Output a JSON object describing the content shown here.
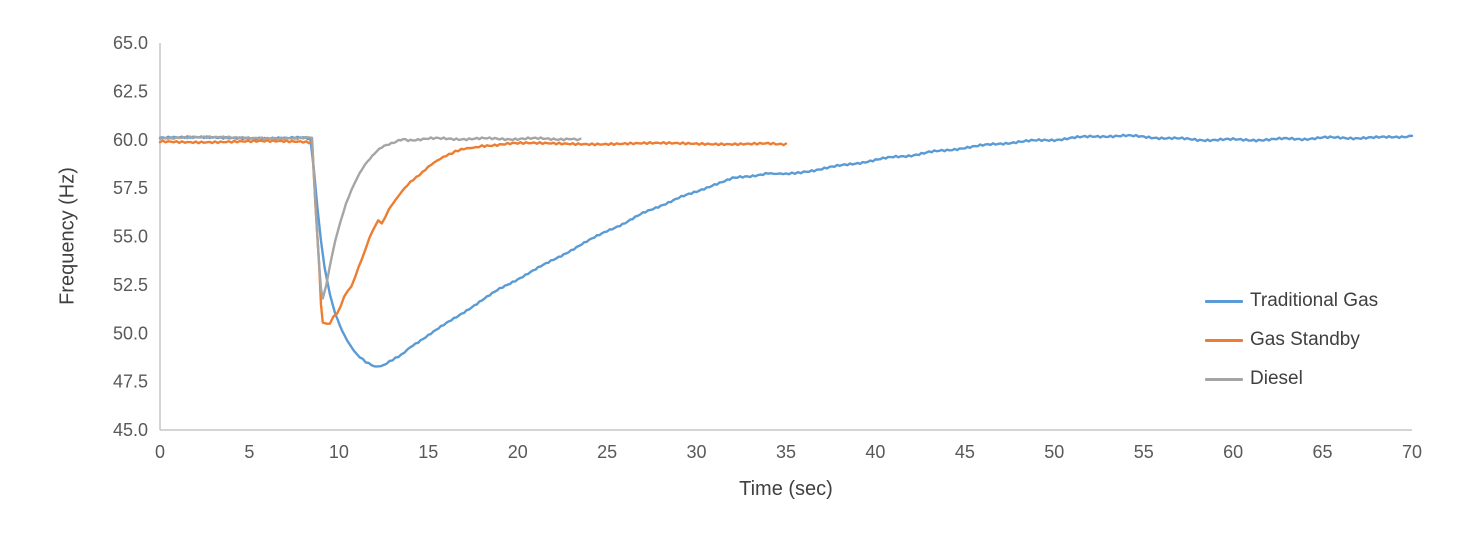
{
  "chart_data": {
    "type": "line",
    "title": "",
    "xlabel": "Time (sec)",
    "ylabel": "Frequency (Hz)",
    "xlim": [
      0,
      70
    ],
    "ylim": [
      45.0,
      65.0
    ],
    "x_ticks": [
      0,
      5,
      10,
      15,
      20,
      25,
      30,
      35,
      40,
      45,
      50,
      55,
      60,
      65,
      70
    ],
    "y_ticks": [
      45.0,
      47.5,
      50.0,
      52.5,
      55.0,
      57.5,
      60.0,
      62.5,
      65.0
    ],
    "grid": false,
    "legend_position": "right-inside",
    "axis_color": "#C6C6C6",
    "tick_color": "#595959",
    "series": [
      {
        "name": "Traditional Gas",
        "color": "#5B9BD5",
        "points": [
          [
            0,
            60.1
          ],
          [
            2,
            60.1
          ],
          [
            4,
            60.1
          ],
          [
            6,
            60.1
          ],
          [
            8,
            60.1
          ],
          [
            8.4,
            60.1
          ],
          [
            8.6,
            58.5
          ],
          [
            8.8,
            56.5
          ],
          [
            9.0,
            54.8
          ],
          [
            9.2,
            53.4
          ],
          [
            9.5,
            52.0
          ],
          [
            9.8,
            51.0
          ],
          [
            10.2,
            50.1
          ],
          [
            10.6,
            49.4
          ],
          [
            11.0,
            48.9
          ],
          [
            11.5,
            48.5
          ],
          [
            12.0,
            48.3
          ],
          [
            12.5,
            48.35
          ],
          [
            13.0,
            48.6
          ],
          [
            13.5,
            48.9
          ],
          [
            14.0,
            49.3
          ],
          [
            15,
            49.9
          ],
          [
            16,
            50.5
          ],
          [
            17,
            51.1
          ],
          [
            18,
            51.7
          ],
          [
            19,
            52.3
          ],
          [
            20,
            52.8
          ],
          [
            21,
            53.3
          ],
          [
            22,
            53.8
          ],
          [
            23,
            54.3
          ],
          [
            24,
            54.8
          ],
          [
            25,
            55.3
          ],
          [
            26,
            55.7
          ],
          [
            27,
            56.2
          ],
          [
            28,
            56.6
          ],
          [
            29,
            57.0
          ],
          [
            30,
            57.3
          ],
          [
            31,
            57.7
          ],
          [
            32,
            58.0
          ],
          [
            33,
            58.1
          ],
          [
            34,
            58.3
          ],
          [
            34.5,
            58.25
          ],
          [
            35,
            58.2
          ],
          [
            35.5,
            58.3
          ],
          [
            36,
            58.35
          ],
          [
            37,
            58.5
          ],
          [
            38,
            58.65
          ],
          [
            39,
            58.8
          ],
          [
            40,
            58.95
          ],
          [
            41,
            59.1
          ],
          [
            42,
            59.2
          ],
          [
            43,
            59.35
          ],
          [
            44,
            59.45
          ],
          [
            45,
            59.6
          ],
          [
            46,
            59.7
          ],
          [
            47,
            59.8
          ],
          [
            48,
            59.9
          ],
          [
            49,
            59.95
          ],
          [
            50,
            60.0
          ],
          [
            51,
            60.1
          ],
          [
            52,
            60.15
          ],
          [
            53,
            60.2
          ],
          [
            54,
            60.2
          ],
          [
            55,
            60.15
          ],
          [
            56,
            60.1
          ],
          [
            57,
            60.05
          ],
          [
            58,
            60.0
          ],
          [
            59,
            60.0
          ],
          [
            60,
            60.0
          ],
          [
            61,
            60.0
          ],
          [
            62,
            60.0
          ],
          [
            63,
            60.05
          ],
          [
            64,
            60.05
          ],
          [
            65,
            60.1
          ],
          [
            66,
            60.1
          ],
          [
            67,
            60.1
          ],
          [
            68,
            60.1
          ],
          [
            69,
            60.15
          ],
          [
            70,
            60.2
          ]
        ]
      },
      {
        "name": "Gas Standby",
        "color": "#ED7D31",
        "points": [
          [
            0,
            59.9
          ],
          [
            2,
            59.9
          ],
          [
            4,
            59.9
          ],
          [
            6,
            59.9
          ],
          [
            8,
            59.9
          ],
          [
            8.5,
            59.9
          ],
          [
            8.7,
            56.5
          ],
          [
            8.9,
            53.5
          ],
          [
            9.0,
            51.5
          ],
          [
            9.1,
            50.6
          ],
          [
            9.3,
            50.45
          ],
          [
            9.5,
            50.5
          ],
          [
            9.7,
            50.9
          ],
          [
            9.9,
            51.0
          ],
          [
            10.1,
            51.4
          ],
          [
            10.3,
            51.9
          ],
          [
            10.5,
            52.2
          ],
          [
            10.7,
            52.4
          ],
          [
            10.9,
            52.9
          ],
          [
            11.1,
            53.4
          ],
          [
            11.4,
            54.1
          ],
          [
            11.7,
            54.9
          ],
          [
            12.0,
            55.5
          ],
          [
            12.2,
            55.8
          ],
          [
            12.4,
            55.7
          ],
          [
            12.6,
            56.0
          ],
          [
            12.8,
            56.4
          ],
          [
            13.0,
            56.7
          ],
          [
            13.5,
            57.3
          ],
          [
            14.0,
            57.8
          ],
          [
            14.5,
            58.2
          ],
          [
            15.0,
            58.6
          ],
          [
            15.5,
            58.9
          ],
          [
            16.0,
            59.2
          ],
          [
            16.5,
            59.4
          ],
          [
            17.0,
            59.5
          ],
          [
            17.5,
            59.6
          ],
          [
            18.0,
            59.7
          ],
          [
            19,
            59.75
          ],
          [
            20,
            59.8
          ],
          [
            22,
            59.8
          ],
          [
            24,
            59.8
          ],
          [
            26,
            59.8
          ],
          [
            28,
            59.8
          ],
          [
            30,
            59.8
          ],
          [
            32,
            59.8
          ],
          [
            34,
            59.8
          ],
          [
            35,
            59.8
          ]
        ]
      },
      {
        "name": "Diesel",
        "color": "#A5A5A5",
        "points": [
          [
            0,
            60.1
          ],
          [
            2,
            60.1
          ],
          [
            4,
            60.1
          ],
          [
            6,
            60.1
          ],
          [
            8,
            60.1
          ],
          [
            8.5,
            60.1
          ],
          [
            8.7,
            56.5
          ],
          [
            8.9,
            53.5
          ],
          [
            9.0,
            52.3
          ],
          [
            9.1,
            51.8
          ],
          [
            9.3,
            52.5
          ],
          [
            9.5,
            53.5
          ],
          [
            9.8,
            54.8
          ],
          [
            10.1,
            55.8
          ],
          [
            10.4,
            56.7
          ],
          [
            10.7,
            57.4
          ],
          [
            11.0,
            58.0
          ],
          [
            11.3,
            58.5
          ],
          [
            11.6,
            58.9
          ],
          [
            12.0,
            59.3
          ],
          [
            12.4,
            59.6
          ],
          [
            12.8,
            59.8
          ],
          [
            13.2,
            59.9
          ],
          [
            13.6,
            60.0
          ],
          [
            14.0,
            60.0
          ],
          [
            15,
            60.05
          ],
          [
            16,
            60.05
          ],
          [
            17,
            60.05
          ],
          [
            18,
            60.05
          ],
          [
            19,
            60.05
          ],
          [
            20,
            60.05
          ],
          [
            21,
            60.05
          ],
          [
            22,
            60.05
          ],
          [
            23,
            60.05
          ],
          [
            23.5,
            60.05
          ]
        ]
      }
    ]
  }
}
